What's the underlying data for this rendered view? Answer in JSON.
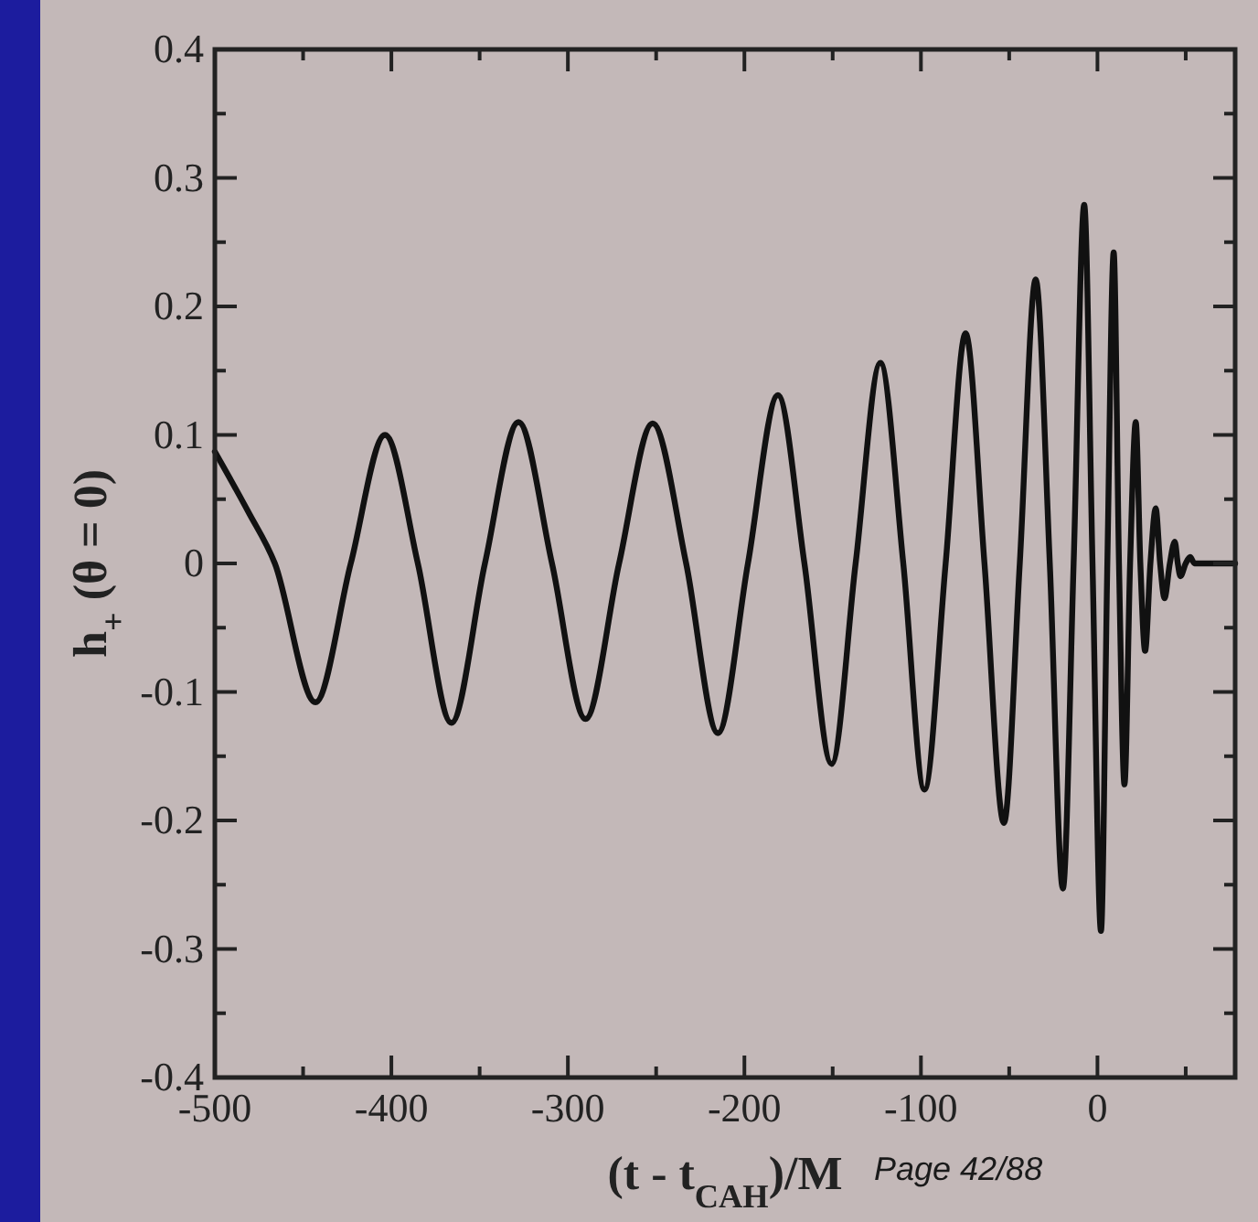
{
  "chart_data": {
    "type": "line",
    "xlabel": "(t - t$_{CAH}$)/M",
    "ylabel": "h$_{+}$ (θ = 0)",
    "annotations": [
      "Page 42/88"
    ],
    "xlim": [
      -500,
      78
    ],
    "ylim": [
      -0.4,
      0.4
    ],
    "xticks": [
      -500,
      {
        "value": -450,
        "label": null
      },
      -400,
      {
        "value": -350,
        "label": null
      },
      -300,
      {
        "value": -250,
        "label": null
      },
      -200,
      {
        "value": -150,
        "label": null
      },
      -100,
      {
        "value": -50,
        "label": null
      },
      0,
      {
        "value": 50,
        "label": null
      }
    ],
    "yticks": [
      -0.4,
      {
        "value": -0.35,
        "label": null
      },
      -0.3,
      {
        "value": -0.25,
        "label": null
      },
      -0.2,
      {
        "value": -0.15,
        "label": null
      },
      -0.1,
      {
        "value": -0.05,
        "label": null
      },
      0,
      {
        "value": 0.05,
        "label": null
      },
      0.1,
      {
        "value": 0.15,
        "label": null
      },
      0.2,
      {
        "value": 0.25,
        "label": null
      },
      0.3,
      {
        "value": 0.35,
        "label": null
      },
      0.4
    ],
    "grid": false,
    "series": [
      {
        "color": "#111111",
        "line_style": "solid",
        "marker": "none",
        "x": [
          -500,
          -481,
          -466,
          -443,
          -423,
          -403.6,
          -385,
          -366,
          -347,
          -328,
          -309,
          -290,
          -271,
          -252,
          -233,
          -215,
          -198,
          -181,
          -166,
          -150.6,
          -137,
          -123,
          -110,
          -98,
          -86,
          -74.7,
          -64,
          -53,
          -44,
          -35,
          -27,
          -19.6,
          -13.5,
          -7.5,
          -2.8,
          2,
          5.6,
          9.2,
          12.2,
          15.3,
          18.5,
          21.7,
          24.3,
          27,
          30,
          33,
          35.5,
          38,
          41,
          43.8,
          45.5,
          47,
          50,
          52.5,
          55,
          78
        ],
        "values": [
          0.087,
          0.04,
          0,
          -0.108,
          0,
          0.1,
          0,
          -0.124,
          0,
          0.11,
          0,
          -0.121,
          0,
          0.109,
          0,
          -0.132,
          0,
          0.131,
          0,
          -0.156,
          0,
          0.156,
          0,
          -0.176,
          0,
          0.179,
          0,
          -0.202,
          0,
          0.221,
          0,
          -0.253,
          0,
          0.279,
          0,
          -0.286,
          0,
          0.242,
          0,
          -0.172,
          0,
          0.11,
          0,
          -0.068,
          0,
          0.043,
          0,
          -0.027,
          0,
          0.017,
          0,
          -0.01,
          0,
          0.005,
          0,
          0
        ]
      }
    ]
  }
}
